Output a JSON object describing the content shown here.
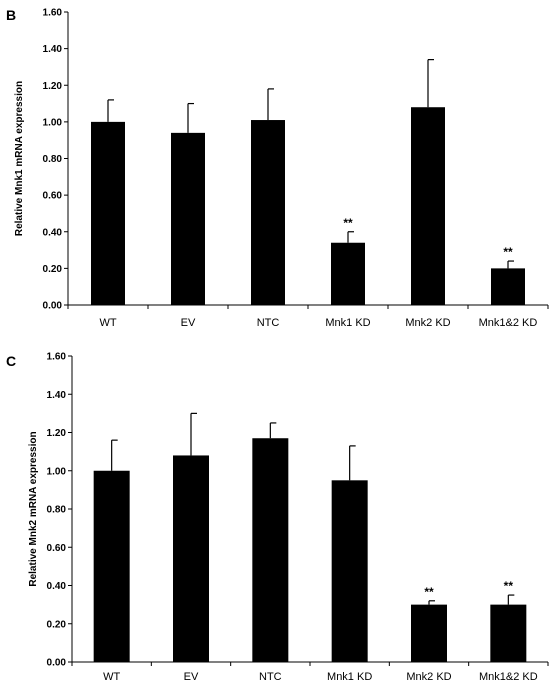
{
  "chart_data": [
    {
      "type": "bar",
      "panel_label": "B",
      "ylabel": "Relative Mnk1 mRNA expression",
      "ylim": [
        0,
        1.6
      ],
      "yticks": [
        "0.00",
        "0.20",
        "0.40",
        "0.60",
        "0.80",
        "1.00",
        "1.20",
        "1.40",
        "1.60"
      ],
      "categories": [
        "WT",
        "EV",
        "NTC",
        "Mnk1  KD",
        "Mnk2  KD",
        "Mnk1&2 KD"
      ],
      "values": [
        1.0,
        0.94,
        1.01,
        0.34,
        1.08,
        0.2
      ],
      "errors": [
        0.12,
        0.16,
        0.17,
        0.06,
        0.26,
        0.04
      ],
      "significance": [
        "",
        "",
        "",
        "**",
        "",
        "**"
      ],
      "color": "#000000"
    },
    {
      "type": "bar",
      "panel_label": "C",
      "ylabel": "Relative Mnk2 mRNA expression",
      "ylim": [
        0,
        1.6
      ],
      "yticks": [
        "0.00",
        "0.20",
        "0.40",
        "0.60",
        "0.80",
        "1.00",
        "1.20",
        "1.40",
        "1.60"
      ],
      "categories": [
        "WT",
        "EV",
        "NTC",
        "Mnk1 KD",
        "Mnk2 KD",
        "Mnk1&2 KD"
      ],
      "values": [
        1.0,
        1.08,
        1.17,
        0.95,
        0.3,
        0.3
      ],
      "errors": [
        0.16,
        0.22,
        0.08,
        0.18,
        0.02,
        0.05
      ],
      "significance": [
        "",
        "",
        "",
        "",
        "**",
        "**"
      ],
      "color": "#000000"
    }
  ]
}
